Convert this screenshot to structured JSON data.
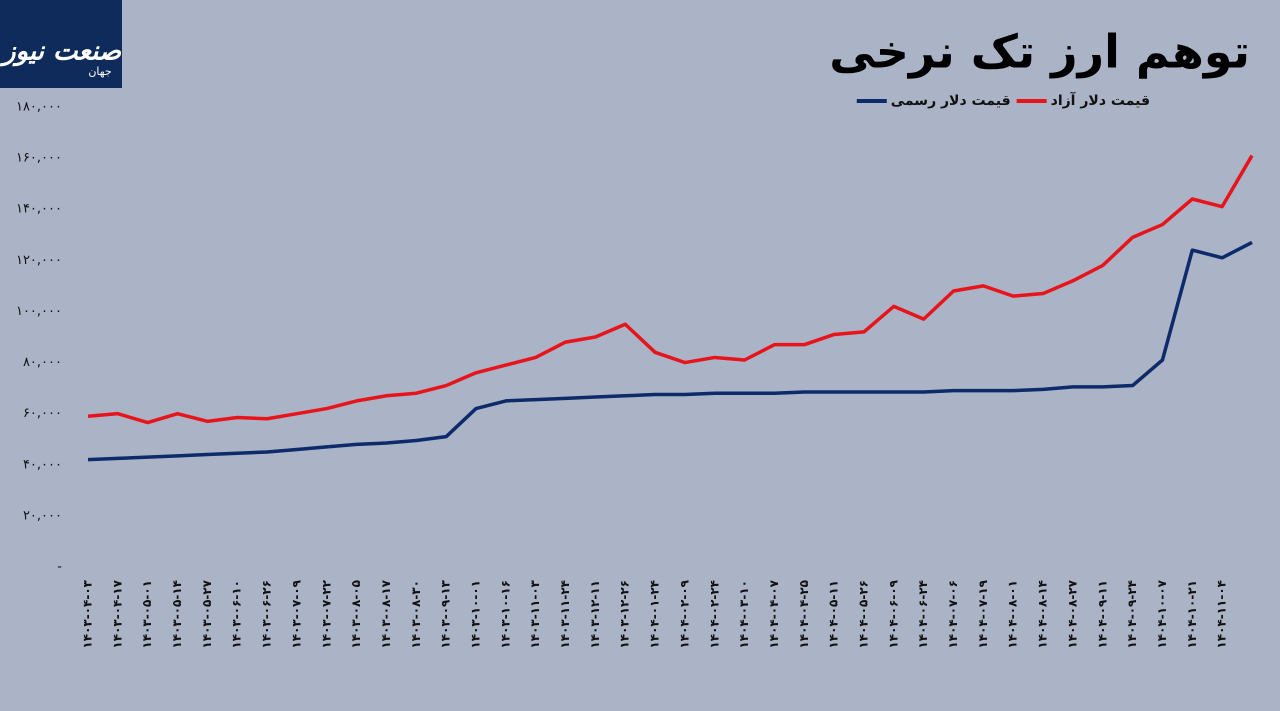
{
  "logo": {
    "name": "صنعت نیوز",
    "prefix": "جهان"
  },
  "chart_data": {
    "type": "line",
    "title": "توهم ارز تک نرخی",
    "categories": [
      "۱۴۰۳-۰۴-۰۳",
      "۱۴۰۳-۰۴-۱۷",
      "۱۴۰۳-۰۵-۰۱",
      "۱۴۰۳-۰۵-۱۴",
      "۱۴۰۳-۰۵-۲۷",
      "۱۴۰۳-۰۶-۱۰",
      "۱۴۰۳-۰۶-۲۶",
      "۱۴۰۳-۰۷-۰۹",
      "۱۴۰۳-۰۷-۲۲",
      "۱۴۰۳-۰۸-۰۵",
      "۱۴۰۳-۰۸-۱۷",
      "۱۴۰۳-۰۸-۳۰",
      "۱۴۰۳-۰۹-۱۳",
      "۱۴۰۳-۱۰-۰۱",
      "۱۴۰۳-۱۰-۱۶",
      "۱۴۰۳-۱۱-۰۳",
      "۱۴۰۳-۱۱-۲۴",
      "۱۴۰۳-۱۲-۱۱",
      "۱۴۰۳-۱۲-۲۶",
      "۱۴۰۴-۰۱-۲۴",
      "۱۴۰۴-۰۲-۰۹",
      "۱۴۰۴-۰۲-۲۴",
      "۱۴۰۴-۰۳-۱۰",
      "۱۴۰۴-۰۴-۰۷",
      "۱۴۰۴-۰۴-۲۵",
      "۱۴۰۴-۰۵-۱۱",
      "۱۴۰۴-۰۵-۲۶",
      "۱۴۰۴-۰۶-۰۹",
      "۱۴۰۴-۰۶-۲۴",
      "۱۴۰۴-۰۷-۰۶",
      "۱۴۰۴-۰۷-۱۹",
      "۱۴۰۴-۰۸-۰۱",
      "۱۴۰۴-۰۸-۱۴",
      "۱۴۰۴-۰۸-۲۷",
      "۱۴۰۴-۰۹-۱۱",
      "۱۴۰۴-۰۹-۲۴",
      "۱۴۰۴-۱۰-۰۷",
      "۱۴۰۴-۱۰-۲۱",
      "۱۴۰۴-۱۱-۰۴",
      null
    ],
    "series": [
      {
        "name": "قیمت دلار آزاد",
        "color": "#e8141b",
        "values": [
          59000,
          60000,
          56500,
          60000,
          57000,
          58500,
          58000,
          60000,
          62000,
          65000,
          67000,
          68000,
          71000,
          76000,
          79000,
          82000,
          88000,
          90000,
          95000,
          84000,
          80000,
          82000,
          81000,
          87000,
          87000,
          91000,
          92000,
          102000,
          97000,
          108000,
          110000,
          106000,
          107000,
          112000,
          118000,
          129000,
          134000,
          144000,
          141000,
          161000
        ]
      },
      {
        "name": "قیمت دلار رسمی",
        "color": "#0d2a6b",
        "values": [
          42000,
          42500,
          43000,
          43500,
          44000,
          44500,
          45000,
          46000,
          47000,
          48000,
          48500,
          49500,
          51000,
          62000,
          65000,
          65500,
          66000,
          66500,
          67000,
          67500,
          67500,
          68000,
          68000,
          68000,
          68500,
          68500,
          68500,
          68500,
          68500,
          69000,
          69000,
          69000,
          69500,
          70500,
          70500,
          71000,
          81000,
          124000,
          121000,
          127000
        ]
      }
    ],
    "ylim": [
      0,
      180000
    ],
    "yticks": [
      {
        "value": 0,
        "label": "-"
      },
      {
        "value": 20000,
        "label": "۲۰,۰۰۰"
      },
      {
        "value": 40000,
        "label": "۴۰,۰۰۰"
      },
      {
        "value": 60000,
        "label": "۶۰,۰۰۰"
      },
      {
        "value": 80000,
        "label": "۸۰,۰۰۰"
      },
      {
        "value": 100000,
        "label": "۱۰۰,۰۰۰"
      },
      {
        "value": 120000,
        "label": "۱۲۰,۰۰۰"
      },
      {
        "value": 140000,
        "label": "۱۴۰,۰۰۰"
      },
      {
        "value": 160000,
        "label": "۱۶۰,۰۰۰"
      },
      {
        "value": 180000,
        "label": "۱۸۰,۰۰۰"
      }
    ]
  }
}
